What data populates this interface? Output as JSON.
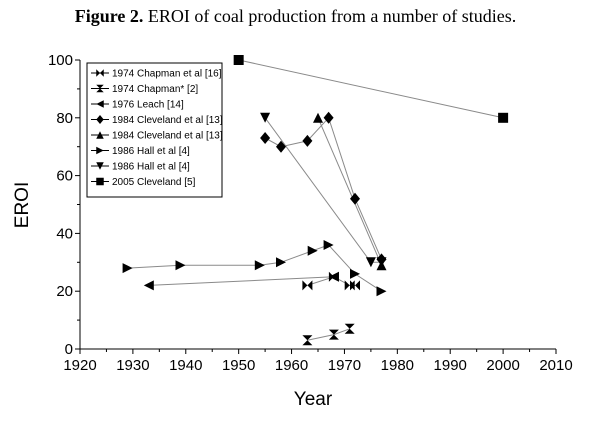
{
  "caption": {
    "label": "Figure 2.",
    "text": "EROI of coal production from a number of studies."
  },
  "chart_data": {
    "type": "scatter",
    "title": "Figure 2. EROI of coal production from a number of studies.",
    "xlabel": "Year",
    "ylabel": "EROI",
    "xlim": [
      1920,
      2010
    ],
    "ylim": [
      0,
      100
    ],
    "xticks": [
      1920,
      1930,
      1940,
      1950,
      1960,
      1970,
      1980,
      1990,
      2000,
      2010
    ],
    "yticks": [
      0,
      20,
      40,
      60,
      80,
      100
    ],
    "grid": false,
    "legend_placement": "top-left",
    "series": [
      {
        "name": "1974 Chapman et al [16]",
        "marker": "bowtie-h",
        "points": [
          [
            1963,
            22
          ],
          [
            1968,
            25
          ],
          [
            1971,
            22
          ],
          [
            1972,
            22
          ]
        ]
      },
      {
        "name": "1974 Chapman* [2]",
        "marker": "bowtie-v",
        "points": [
          [
            1963,
            3
          ],
          [
            1968,
            5
          ],
          [
            1971,
            7
          ]
        ]
      },
      {
        "name": "1976 Leach [14]",
        "marker": "triangle-left",
        "points": [
          [
            1933,
            22
          ],
          [
            1968,
            25
          ]
        ]
      },
      {
        "name": "1984 Cleveland et al [13]",
        "marker": "diamond",
        "points": [
          [
            1955,
            73
          ],
          [
            1958,
            70
          ],
          [
            1963,
            72
          ],
          [
            1967,
            80
          ],
          [
            1972,
            52
          ],
          [
            1977,
            31
          ]
        ]
      },
      {
        "name": "1984 Cleveland et al [13]",
        "marker": "triangle-up",
        "points": [
          [
            1965,
            80
          ],
          [
            1977,
            29
          ]
        ]
      },
      {
        "name": "1986 Hall et al [4]",
        "marker": "triangle-right",
        "points": [
          [
            1929,
            28
          ],
          [
            1939,
            29
          ],
          [
            1954,
            29
          ],
          [
            1958,
            30
          ],
          [
            1964,
            34
          ],
          [
            1967,
            36
          ],
          [
            1972,
            26
          ],
          [
            1977,
            20
          ]
        ]
      },
      {
        "name": "1986 Hall et al [4]",
        "marker": "triangle-down",
        "points": [
          [
            1955,
            80
          ],
          [
            1975,
            30
          ],
          [
            1977,
            30
          ]
        ]
      },
      {
        "name": "2005 Cleveland [5]",
        "marker": "square",
        "points": [
          [
            1950,
            100
          ],
          [
            2000,
            80
          ]
        ]
      }
    ]
  }
}
